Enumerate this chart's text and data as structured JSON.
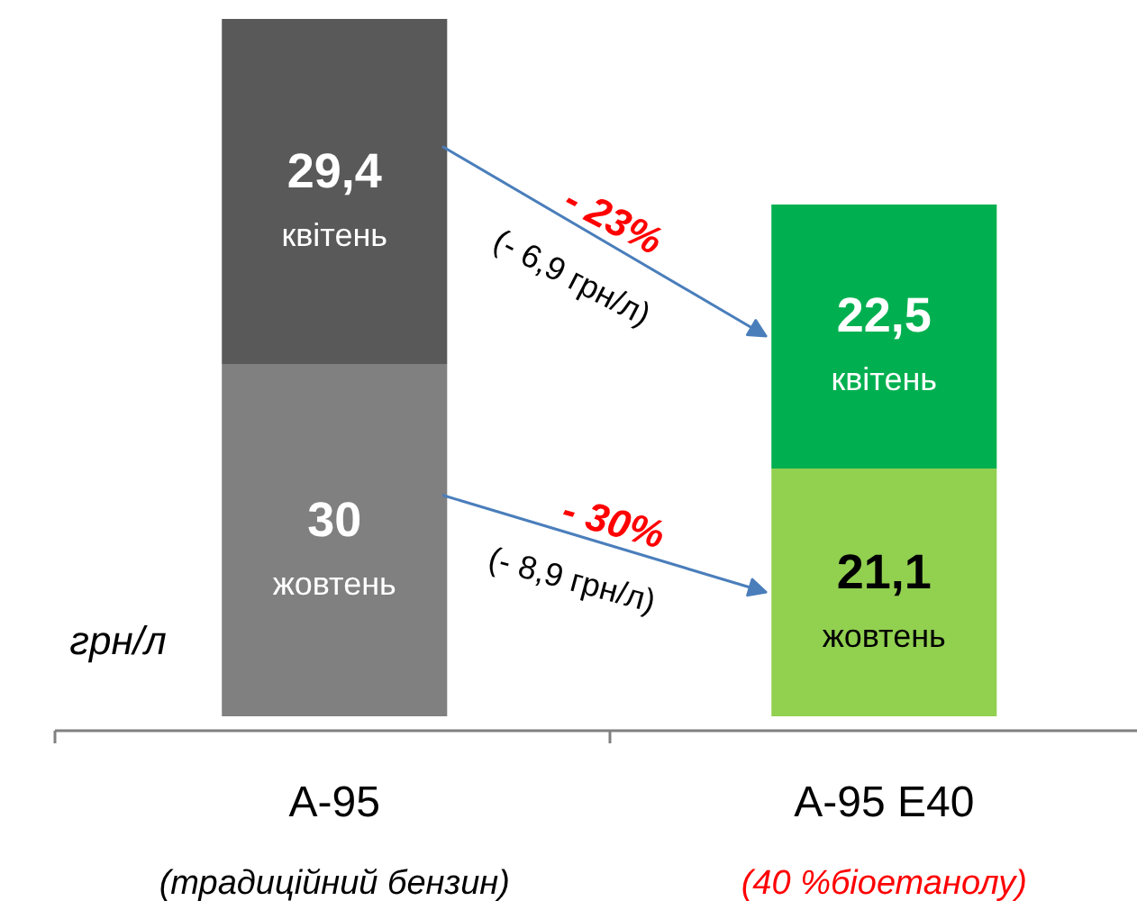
{
  "chart_data": {
    "type": "bar",
    "stacked": true,
    "categories": [
      "A-95",
      "A-95 E40"
    ],
    "series": [
      {
        "name": "жовтень",
        "colors": [
          "#808080",
          "#92d050"
        ],
        "values": [
          30,
          21.1
        ],
        "value_labels": [
          "30",
          "21,1"
        ]
      },
      {
        "name": "квітень",
        "colors": [
          "#595959",
          "#00b050"
        ],
        "values": [
          29.4,
          22.5
        ],
        "value_labels": [
          "29,4",
          "22,5"
        ]
      }
    ],
    "annotations": [
      "(традиційний бензин)",
      "(40 %біоетанолу)",
      "грн/л",
      "- 23%",
      "(- 6,9 грн/л)",
      "- 30%",
      "(- 8,9 грн/л)"
    ],
    "grid": false
  }
}
